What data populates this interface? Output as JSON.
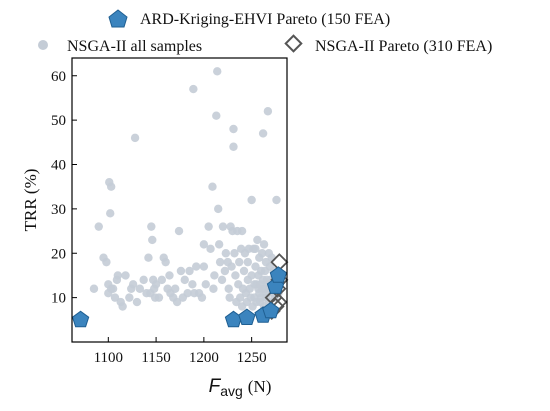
{
  "chart_data": {
    "type": "scatter",
    "xlabel_main": "F",
    "xlabel_sub": "avg",
    "xlabel_unit": "(N)",
    "ylabel": "TRR (%)",
    "xlim": [
      1062,
      1287
    ],
    "ylim": [
      0,
      64
    ],
    "xticks": [
      "1100",
      "1150",
      "1200",
      "1250"
    ],
    "xtick_values": [
      1100,
      1150,
      1200,
      1250
    ],
    "yticks": [
      "10",
      "20",
      "30",
      "40",
      "50",
      "60"
    ],
    "ytick_values": [
      10,
      20,
      30,
      40,
      50,
      60
    ],
    "legend": {
      "placement": "top",
      "entries": [
        "ARD-Kriging-EHVI Pareto (150 FEA)",
        "NSGA-II all samples",
        "NSGA-II Pareto (310 FEA)"
      ]
    },
    "colors": {
      "all_samples": "#c4ccd6",
      "ehvi_pareto": "#3b84be",
      "ehvi_pareto_edge": "#1f5f92",
      "nsga_pareto_edge": "#555555"
    },
    "series": [
      {
        "name": "NSGA-II all samples",
        "marker": "circle",
        "points": [
          [
            1085,
            12
          ],
          [
            1090,
            26
          ],
          [
            1095,
            19
          ],
          [
            1098,
            18
          ],
          [
            1100,
            11
          ],
          [
            1100,
            13
          ],
          [
            1101,
            36
          ],
          [
            1102,
            29
          ],
          [
            1103,
            35
          ],
          [
            1103,
            12
          ],
          [
            1105,
            12
          ],
          [
            1107,
            10
          ],
          [
            1109,
            14
          ],
          [
            1110,
            15
          ],
          [
            1113,
            9
          ],
          [
            1115,
            8
          ],
          [
            1118,
            15
          ],
          [
            1122,
            10
          ],
          [
            1124,
            12
          ],
          [
            1126,
            13
          ],
          [
            1128,
            46
          ],
          [
            1130,
            9
          ],
          [
            1133,
            12
          ],
          [
            1137,
            14
          ],
          [
            1140,
            11
          ],
          [
            1142,
            19
          ],
          [
            1144,
            11
          ],
          [
            1145,
            26
          ],
          [
            1146,
            23
          ],
          [
            1147,
            14
          ],
          [
            1148,
            12
          ],
          [
            1149,
            10
          ],
          [
            1150,
            13
          ],
          [
            1153,
            10
          ],
          [
            1156,
            14
          ],
          [
            1158,
            19
          ],
          [
            1160,
            18
          ],
          [
            1162,
            12
          ],
          [
            1164,
            15
          ],
          [
            1165,
            11
          ],
          [
            1168,
            10
          ],
          [
            1170,
            12
          ],
          [
            1172,
            9
          ],
          [
            1174,
            25
          ],
          [
            1176,
            16
          ],
          [
            1178,
            10
          ],
          [
            1180,
            14
          ],
          [
            1183,
            11
          ],
          [
            1185,
            16
          ],
          [
            1188,
            13
          ],
          [
            1189,
            57
          ],
          [
            1190,
            11
          ],
          [
            1192,
            17
          ],
          [
            1195,
            11
          ],
          [
            1198,
            10
          ],
          [
            1200,
            22
          ],
          [
            1200,
            17
          ],
          [
            1202,
            13
          ],
          [
            1205,
            26
          ],
          [
            1207,
            21
          ],
          [
            1209,
            35
          ],
          [
            1210,
            12
          ],
          [
            1211,
            15
          ],
          [
            1213,
            51
          ],
          [
            1214,
            61
          ],
          [
            1215,
            30
          ],
          [
            1216,
            22
          ],
          [
            1217,
            18
          ],
          [
            1219,
            14
          ],
          [
            1220,
            26
          ],
          [
            1222,
            16
          ],
          [
            1223,
            20
          ],
          [
            1225,
            18
          ],
          [
            1226,
            12
          ],
          [
            1227,
            10
          ],
          [
            1228,
            26
          ],
          [
            1229,
            17
          ],
          [
            1230,
            25
          ],
          [
            1231,
            44
          ],
          [
            1231,
            48
          ],
          [
            1232,
            20
          ],
          [
            1233,
            15
          ],
          [
            1234,
            9
          ],
          [
            1235,
            25
          ],
          [
            1236,
            13
          ],
          [
            1237,
            18
          ],
          [
            1238,
            10
          ],
          [
            1239,
            21
          ],
          [
            1240,
            8
          ],
          [
            1240,
            25
          ],
          [
            1241,
            12
          ],
          [
            1242,
            16
          ],
          [
            1243,
            20
          ],
          [
            1244,
            11
          ],
          [
            1245,
            9
          ],
          [
            1246,
            14
          ],
          [
            1246,
            18
          ],
          [
            1247,
            21
          ],
          [
            1248,
            12
          ],
          [
            1249,
            10
          ],
          [
            1250,
            15
          ],
          [
            1250,
            32
          ],
          [
            1251,
            8
          ],
          [
            1252,
            21
          ],
          [
            1253,
            13
          ],
          [
            1253,
            10
          ],
          [
            1254,
            17
          ],
          [
            1254,
            21
          ],
          [
            1255,
            13
          ],
          [
            1255,
            9
          ],
          [
            1256,
            23
          ],
          [
            1257,
            12
          ],
          [
            1257,
            15
          ],
          [
            1258,
            11
          ],
          [
            1258,
            19
          ],
          [
            1259,
            13
          ],
          [
            1259,
            9
          ],
          [
            1260,
            16
          ],
          [
            1260,
            10
          ],
          [
            1261,
            20
          ],
          [
            1261,
            12
          ],
          [
            1262,
            47
          ],
          [
            1262,
            14
          ],
          [
            1263,
            8
          ],
          [
            1263,
            22
          ],
          [
            1264,
            16
          ],
          [
            1264,
            12
          ],
          [
            1265,
            18
          ],
          [
            1265,
            10
          ],
          [
            1266,
            14
          ],
          [
            1266,
            11
          ],
          [
            1267,
            52
          ],
          [
            1267,
            13
          ],
          [
            1268,
            20
          ],
          [
            1268,
            9
          ],
          [
            1269,
            17
          ],
          [
            1269,
            12
          ],
          [
            1270,
            14
          ],
          [
            1270,
            8
          ],
          [
            1271,
            19
          ],
          [
            1272,
            11
          ],
          [
            1273,
            16
          ],
          [
            1274,
            10
          ],
          [
            1275,
            15
          ],
          [
            1276,
            32
          ],
          [
            1277,
            13
          ],
          [
            1278,
            11
          ]
        ]
      },
      {
        "name": "NSGA-II Pareto (310 FEA)",
        "marker": "diamond",
        "points": [
          [
            1279,
            18
          ],
          [
            1279,
            14
          ],
          [
            1278,
            9
          ],
          [
            1277,
            12
          ],
          [
            1275,
            8
          ],
          [
            1273,
            10
          ],
          [
            1271,
            7
          ]
        ]
      },
      {
        "name": "ARD-Kriging-EHVI Pareto (150 FEA)",
        "marker": "pentagon",
        "points": [
          [
            1071,
            5
          ],
          [
            1231,
            5
          ],
          [
            1245,
            5.5
          ],
          [
            1262,
            6
          ],
          [
            1270,
            7
          ],
          [
            1275,
            12.5
          ],
          [
            1278,
            15
          ]
        ]
      }
    ]
  }
}
